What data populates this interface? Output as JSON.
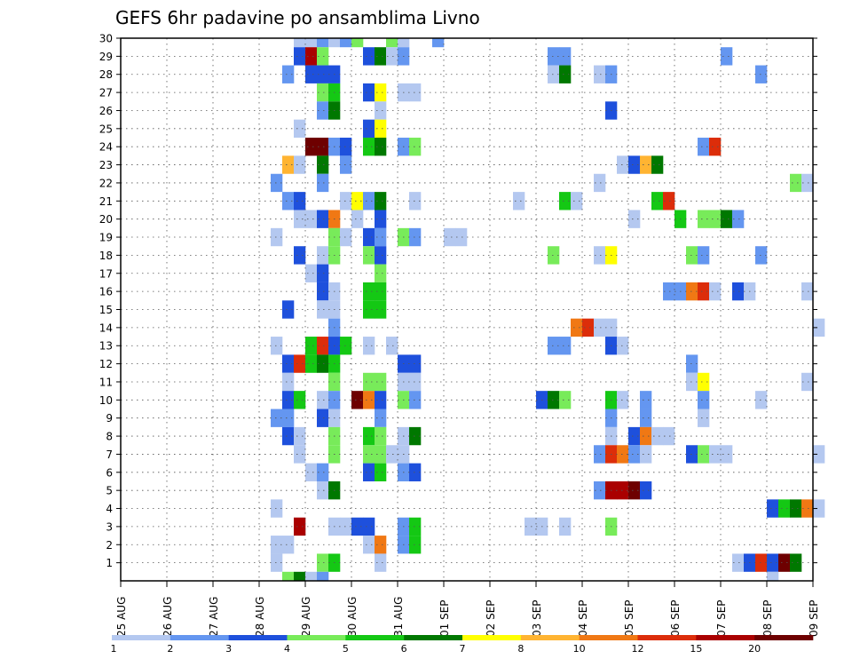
{
  "chart_data": {
    "type": "heatmap",
    "title": "GEFS 6hr padavine po ansamblima Livno",
    "xlabel": "",
    "ylabel": "",
    "x_range": [
      "2025-08-25 00Z",
      "2025-09-09 00Z"
    ],
    "x_step_hours": 6,
    "x_ticks": [
      "25 AUG",
      "26 AUG",
      "27 AUG",
      "28 AUG",
      "29 AUG",
      "30 AUG",
      "31 AUG",
      "01 SEP",
      "02 SEP",
      "03 SEP",
      "04 SEP",
      "05 SEP",
      "06 SEP",
      "07 SEP",
      "08 SEP",
      "09 SEP"
    ],
    "y_ticks": [
      1,
      2,
      3,
      4,
      5,
      6,
      7,
      8,
      9,
      10,
      11,
      12,
      13,
      14,
      15,
      16,
      17,
      18,
      19,
      20,
      21,
      22,
      23,
      24,
      25,
      26,
      27,
      28,
      29,
      30
    ],
    "y_range": [
      0,
      30
    ],
    "grid": true,
    "colorbar": {
      "placement": "bottom",
      "levels": [
        1,
        2,
        3,
        4,
        5,
        6,
        7,
        8,
        10,
        12,
        15,
        20
      ],
      "colors": [
        "#b4c8f0",
        "#6496f0",
        "#1e50dc",
        "#78eb5a",
        "#14c814",
        "#007800",
        "#ffff00",
        "#ffb432",
        "#f07814",
        "#dc2d0a",
        "#aa0000",
        "#6e0000"
      ]
    },
    "cell_format": "[member, step_index_from_25AUG_00Z, color_class_index]",
    "cells": [
      [
        30,
        15,
        0
      ],
      [
        30,
        16,
        0
      ],
      [
        30,
        17,
        1
      ],
      [
        30,
        18,
        0
      ],
      [
        30,
        19,
        1
      ],
      [
        30,
        20,
        3
      ],
      [
        30,
        23,
        3
      ],
      [
        30,
        24,
        0
      ],
      [
        30,
        27,
        1
      ],
      [
        29,
        15,
        2
      ],
      [
        29,
        16,
        10
      ],
      [
        29,
        17,
        3
      ],
      [
        29,
        21,
        2
      ],
      [
        29,
        22,
        5
      ],
      [
        29,
        23,
        0
      ],
      [
        29,
        24,
        1
      ],
      [
        29,
        37,
        1
      ],
      [
        29,
        38,
        1
      ],
      [
        29,
        52,
        1
      ],
      [
        28,
        14,
        1
      ],
      [
        28,
        16,
        2
      ],
      [
        28,
        17,
        2
      ],
      [
        28,
        18,
        2
      ],
      [
        28,
        37,
        0
      ],
      [
        28,
        38,
        5
      ],
      [
        28,
        41,
        0
      ],
      [
        28,
        42,
        1
      ],
      [
        28,
        55,
        1
      ],
      [
        27,
        17,
        3
      ],
      [
        27,
        18,
        4
      ],
      [
        27,
        21,
        2
      ],
      [
        27,
        22,
        6
      ],
      [
        27,
        24,
        0
      ],
      [
        27,
        25,
        0
      ],
      [
        26,
        17,
        1
      ],
      [
        26,
        18,
        5
      ],
      [
        26,
        22,
        0
      ],
      [
        26,
        42,
        2
      ],
      [
        25,
        15,
        0
      ],
      [
        25,
        21,
        2
      ],
      [
        25,
        22,
        6
      ],
      [
        24,
        16,
        11
      ],
      [
        24,
        17,
        11
      ],
      [
        24,
        18,
        1
      ],
      [
        24,
        19,
        2
      ],
      [
        24,
        21,
        4
      ],
      [
        24,
        22,
        5
      ],
      [
        24,
        24,
        1
      ],
      [
        24,
        25,
        3
      ],
      [
        24,
        50,
        1
      ],
      [
        24,
        51,
        9
      ],
      [
        23,
        14,
        7
      ],
      [
        23,
        15,
        0
      ],
      [
        23,
        17,
        5
      ],
      [
        23,
        19,
        1
      ],
      [
        23,
        43,
        0
      ],
      [
        23,
        44,
        2
      ],
      [
        23,
        45,
        7
      ],
      [
        23,
        46,
        5
      ],
      [
        22,
        13,
        1
      ],
      [
        22,
        17,
        1
      ],
      [
        22,
        41,
        0
      ],
      [
        22,
        58,
        3
      ],
      [
        22,
        59,
        0
      ],
      [
        21,
        14,
        1
      ],
      [
        21,
        15,
        2
      ],
      [
        21,
        19,
        0
      ],
      [
        21,
        20,
        6
      ],
      [
        21,
        21,
        1
      ],
      [
        21,
        22,
        5
      ],
      [
        21,
        25,
        0
      ],
      [
        21,
        34,
        0
      ],
      [
        21,
        38,
        4
      ],
      [
        21,
        39,
        0
      ],
      [
        21,
        46,
        4
      ],
      [
        21,
        47,
        9
      ],
      [
        20,
        15,
        0
      ],
      [
        20,
        16,
        0
      ],
      [
        20,
        17,
        2
      ],
      [
        20,
        18,
        8
      ],
      [
        20,
        20,
        0
      ],
      [
        20,
        22,
        2
      ],
      [
        20,
        44,
        0
      ],
      [
        20,
        48,
        4
      ],
      [
        20,
        50,
        3
      ],
      [
        20,
        51,
        3
      ],
      [
        20,
        52,
        5
      ],
      [
        20,
        53,
        1
      ],
      [
        19,
        13,
        0
      ],
      [
        19,
        18,
        3
      ],
      [
        19,
        19,
        0
      ],
      [
        19,
        21,
        2
      ],
      [
        19,
        22,
        1
      ],
      [
        19,
        24,
        3
      ],
      [
        19,
        25,
        1
      ],
      [
        19,
        28,
        0
      ],
      [
        19,
        29,
        0
      ],
      [
        18,
        15,
        2
      ],
      [
        18,
        17,
        0
      ],
      [
        18,
        18,
        3
      ],
      [
        18,
        21,
        3
      ],
      [
        18,
        22,
        2
      ],
      [
        18,
        37,
        3
      ],
      [
        18,
        41,
        0
      ],
      [
        18,
        42,
        6
      ],
      [
        18,
        49,
        3
      ],
      [
        18,
        50,
        1
      ],
      [
        18,
        55,
        1
      ],
      [
        17,
        16,
        0
      ],
      [
        17,
        17,
        2
      ],
      [
        17,
        22,
        3
      ],
      [
        16,
        17,
        2
      ],
      [
        16,
        18,
        0
      ],
      [
        16,
        21,
        4
      ],
      [
        16,
        22,
        4
      ],
      [
        16,
        47,
        1
      ],
      [
        16,
        48,
        1
      ],
      [
        16,
        49,
        8
      ],
      [
        16,
        50,
        9
      ],
      [
        16,
        51,
        0
      ],
      [
        16,
        53,
        2
      ],
      [
        16,
        54,
        0
      ],
      [
        16,
        59,
        0
      ],
      [
        15,
        14,
        2
      ],
      [
        15,
        17,
        0
      ],
      [
        15,
        18,
        0
      ],
      [
        15,
        21,
        4
      ],
      [
        15,
        22,
        4
      ],
      [
        14,
        18,
        1
      ],
      [
        14,
        39,
        8
      ],
      [
        14,
        40,
        9
      ],
      [
        14,
        41,
        0
      ],
      [
        14,
        42,
        0
      ],
      [
        14,
        60,
        0
      ],
      [
        13,
        13,
        0
      ],
      [
        13,
        16,
        4
      ],
      [
        13,
        17,
        9
      ],
      [
        13,
        18,
        2
      ],
      [
        13,
        19,
        4
      ],
      [
        13,
        21,
        0
      ],
      [
        13,
        23,
        0
      ],
      [
        13,
        37,
        1
      ],
      [
        13,
        38,
        1
      ],
      [
        13,
        42,
        2
      ],
      [
        13,
        43,
        0
      ],
      [
        12,
        14,
        2
      ],
      [
        12,
        15,
        9
      ],
      [
        12,
        16,
        4
      ],
      [
        12,
        17,
        5
      ],
      [
        12,
        18,
        4
      ],
      [
        12,
        24,
        2
      ],
      [
        12,
        25,
        2
      ],
      [
        12,
        49,
        1
      ],
      [
        11,
        14,
        0
      ],
      [
        11,
        18,
        3
      ],
      [
        11,
        21,
        3
      ],
      [
        11,
        22,
        3
      ],
      [
        11,
        24,
        0
      ],
      [
        11,
        25,
        0
      ],
      [
        11,
        49,
        0
      ],
      [
        11,
        50,
        6
      ],
      [
        11,
        59,
        0
      ],
      [
        10,
        14,
        2
      ],
      [
        10,
        15,
        4
      ],
      [
        10,
        17,
        0
      ],
      [
        10,
        18,
        1
      ],
      [
        10,
        20,
        11
      ],
      [
        10,
        21,
        8
      ],
      [
        10,
        22,
        2
      ],
      [
        10,
        24,
        3
      ],
      [
        10,
        25,
        1
      ],
      [
        10,
        36,
        2
      ],
      [
        10,
        37,
        5
      ],
      [
        10,
        38,
        3
      ],
      [
        10,
        42,
        4
      ],
      [
        10,
        43,
        0
      ],
      [
        10,
        45,
        1
      ],
      [
        10,
        50,
        1
      ],
      [
        10,
        55,
        0
      ],
      [
        9,
        13,
        1
      ],
      [
        9,
        14,
        1
      ],
      [
        9,
        17,
        2
      ],
      [
        9,
        18,
        0
      ],
      [
        9,
        22,
        1
      ],
      [
        9,
        42,
        1
      ],
      [
        9,
        45,
        1
      ],
      [
        9,
        50,
        0
      ],
      [
        8,
        14,
        2
      ],
      [
        8,
        15,
        0
      ],
      [
        8,
        18,
        3
      ],
      [
        8,
        21,
        4
      ],
      [
        8,
        22,
        3
      ],
      [
        8,
        24,
        0
      ],
      [
        8,
        25,
        5
      ],
      [
        8,
        42,
        0
      ],
      [
        8,
        44,
        2
      ],
      [
        8,
        45,
        8
      ],
      [
        8,
        46,
        0
      ],
      [
        8,
        47,
        0
      ],
      [
        7,
        15,
        0
      ],
      [
        7,
        18,
        3
      ],
      [
        7,
        21,
        3
      ],
      [
        7,
        22,
        3
      ],
      [
        7,
        23,
        0
      ],
      [
        7,
        24,
        0
      ],
      [
        7,
        41,
        1
      ],
      [
        7,
        42,
        9
      ],
      [
        7,
        43,
        8
      ],
      [
        7,
        44,
        1
      ],
      [
        7,
        45,
        0
      ],
      [
        7,
        49,
        2
      ],
      [
        7,
        50,
        3
      ],
      [
        7,
        51,
        0
      ],
      [
        7,
        52,
        0
      ],
      [
        7,
        60,
        0
      ],
      [
        6,
        16,
        0
      ],
      [
        6,
        17,
        1
      ],
      [
        6,
        21,
        2
      ],
      [
        6,
        22,
        4
      ],
      [
        6,
        24,
        1
      ],
      [
        6,
        25,
        2
      ],
      [
        5,
        17,
        0
      ],
      [
        5,
        18,
        5
      ],
      [
        5,
        41,
        1
      ],
      [
        5,
        42,
        10
      ],
      [
        5,
        43,
        10
      ],
      [
        5,
        44,
        11
      ],
      [
        5,
        45,
        2
      ],
      [
        4,
        13,
        0
      ],
      [
        4,
        56,
        2
      ],
      [
        4,
        57,
        4
      ],
      [
        4,
        58,
        5
      ],
      [
        4,
        59,
        8
      ],
      [
        4,
        60,
        0
      ],
      [
        3,
        15,
        10
      ],
      [
        3,
        18,
        0
      ],
      [
        3,
        19,
        0
      ],
      [
        3,
        20,
        2
      ],
      [
        3,
        21,
        2
      ],
      [
        3,
        24,
        1
      ],
      [
        3,
        25,
        4
      ],
      [
        3,
        35,
        0
      ],
      [
        3,
        36,
        0
      ],
      [
        3,
        38,
        0
      ],
      [
        3,
        42,
        3
      ],
      [
        2,
        13,
        0
      ],
      [
        2,
        14,
        0
      ],
      [
        2,
        21,
        0
      ],
      [
        2,
        22,
        8
      ],
      [
        2,
        24,
        1
      ],
      [
        2,
        25,
        4
      ],
      [
        1,
        13,
        0
      ],
      [
        1,
        17,
        3
      ],
      [
        1,
        18,
        4
      ],
      [
        1,
        22,
        0
      ],
      [
        1,
        53,
        0
      ],
      [
        1,
        54,
        2
      ],
      [
        1,
        55,
        9
      ],
      [
        1,
        56,
        2
      ],
      [
        1,
        57,
        11
      ],
      [
        1,
        58,
        5
      ],
      [
        0,
        14,
        3
      ],
      [
        0,
        15,
        5
      ],
      [
        0,
        16,
        0
      ],
      [
        0,
        17,
        1
      ],
      [
        0,
        56,
        0
      ]
    ]
  }
}
